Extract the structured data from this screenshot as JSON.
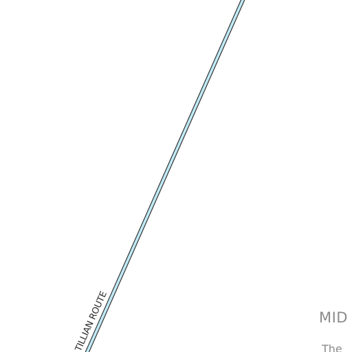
{
  "map": {
    "route": {
      "label": "TILLIAN ROUTE",
      "casing_color": "#333333",
      "fill_color": "#bfeaf5"
    },
    "region": {
      "label": "MID",
      "description": "The"
    },
    "background_color": "#ffffff"
  }
}
